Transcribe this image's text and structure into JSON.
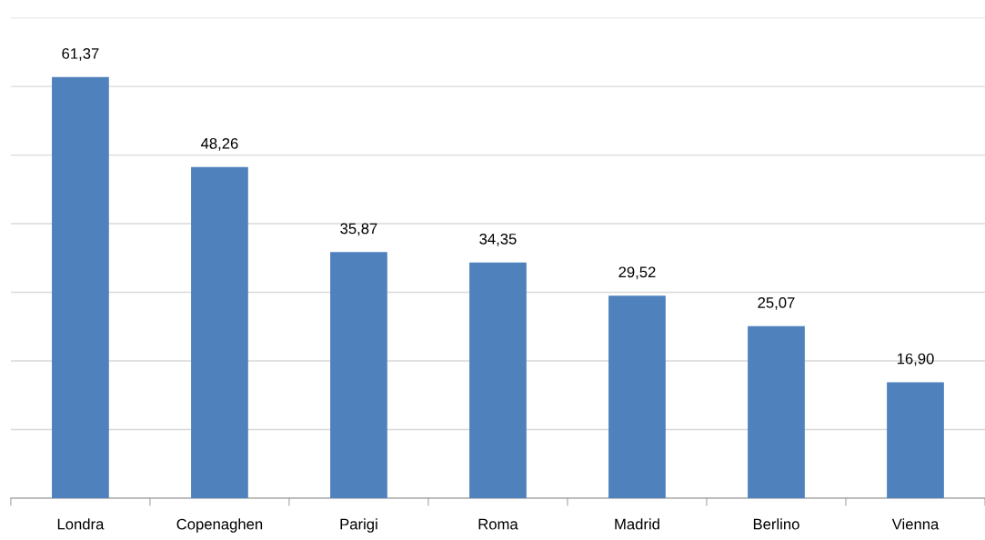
{
  "chart_data": {
    "type": "bar",
    "categories": [
      "Londra",
      "Copenaghen",
      "Parigi",
      "Roma",
      "Madrid",
      "Berlino",
      "Vienna"
    ],
    "values": [
      61.37,
      48.26,
      35.87,
      34.35,
      29.52,
      25.07,
      16.9
    ],
    "value_labels": [
      "61,37",
      "48,26",
      "35,87",
      "34,35",
      "29,52",
      "25,07",
      "16,90"
    ],
    "color": "#4f81bd",
    "ylim": [
      0,
      70
    ],
    "yticks": [
      {
        "value": 0,
        "label": null
      },
      {
        "value": 10,
        "label": null
      },
      {
        "value": 20,
        "label": null
      },
      {
        "value": 30,
        "label": null
      },
      {
        "value": 40,
        "label": null
      },
      {
        "value": 50,
        "label": null
      },
      {
        "value": 60,
        "label": null
      },
      {
        "value": 70,
        "label": null
      }
    ],
    "grid": "y",
    "tick_labels": "x"
  }
}
